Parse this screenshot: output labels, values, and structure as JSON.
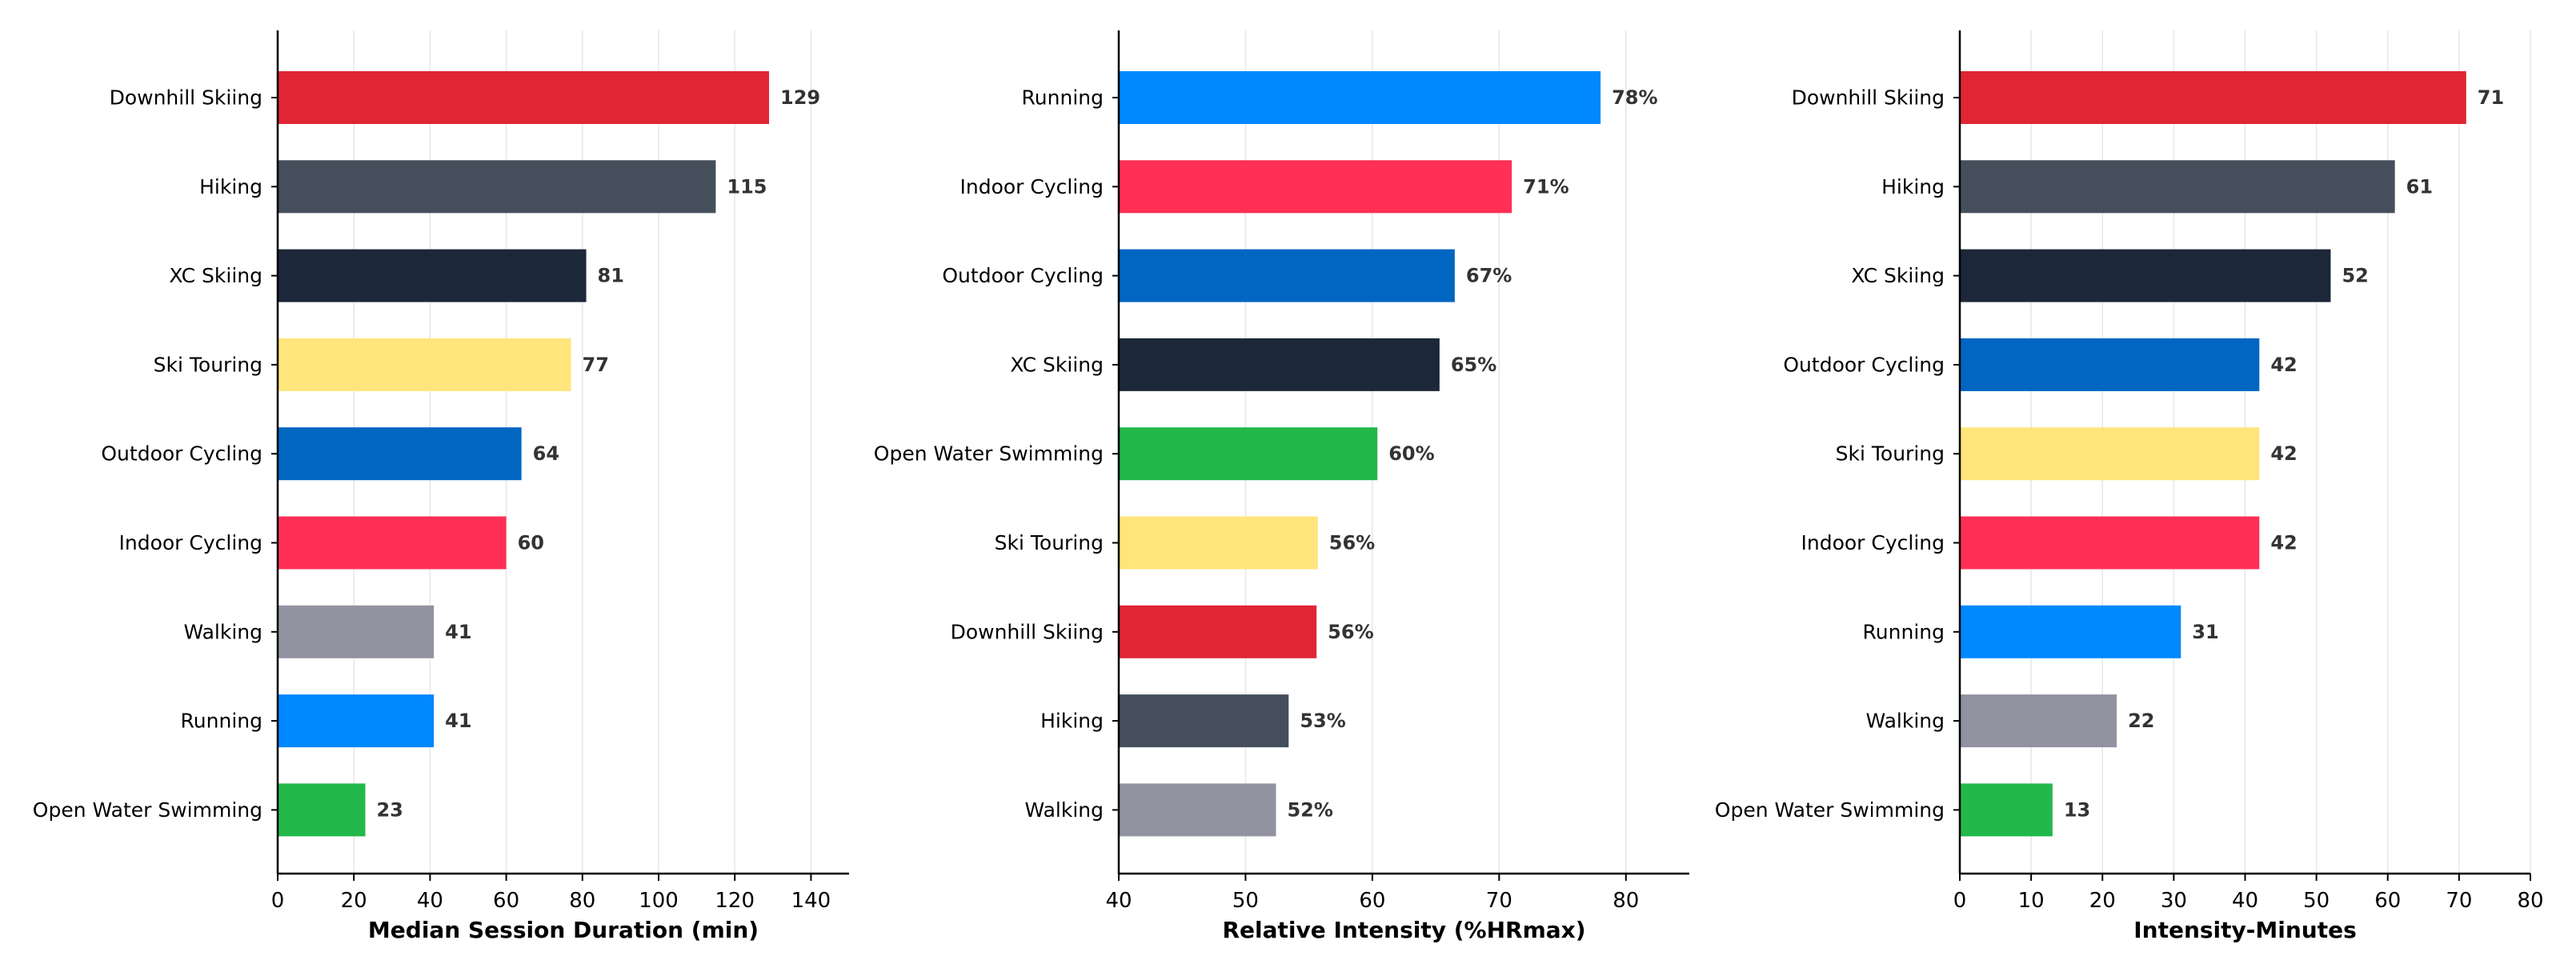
{
  "colors": {
    "Downhill Skiing": "#e02535",
    "Hiking": "#454f5c",
    "XC Skiing": "#1c2739",
    "Ski Touring": "#ffe57c",
    "Outdoor Cycling": "#0066c2",
    "Indoor Cycling": "#ff2f55",
    "Walking": "#9193a1",
    "Running": "#0088ff",
    "Open Water Swimming": "#22b84b"
  },
  "chart_data": [
    {
      "type": "bar",
      "orientation": "horizontal",
      "xlabel": "Median Session Duration (min)",
      "xlim": [
        0,
        150
      ],
      "xticks": [
        0,
        20,
        40,
        60,
        80,
        100,
        120,
        140
      ],
      "value_suffix": "",
      "grid": "vertical",
      "categories": [
        "Downhill Skiing",
        "Hiking",
        "XC Skiing",
        "Ski Touring",
        "Outdoor Cycling",
        "Indoor Cycling",
        "Walking",
        "Running",
        "Open Water Swimming"
      ],
      "values": [
        129,
        115,
        81,
        77,
        64,
        60,
        41,
        41,
        23
      ],
      "value_labels": [
        "129",
        "115",
        "81",
        "77",
        "64",
        "60",
        "41",
        "41",
        "23"
      ]
    },
    {
      "type": "bar",
      "orientation": "horizontal",
      "xlabel": "Relative Intensity (%HRmax)",
      "xlim": [
        40,
        85
      ],
      "xticks": [
        40,
        50,
        60,
        70,
        80
      ],
      "value_suffix": "%",
      "grid": "vertical",
      "categories": [
        "Running",
        "Indoor Cycling",
        "Outdoor Cycling",
        "XC Skiing",
        "Open Water Swimming",
        "Ski Touring",
        "Downhill Skiing",
        "Hiking",
        "Walking"
      ],
      "values": [
        78,
        71,
        66.5,
        65.3,
        60.4,
        55.7,
        55.6,
        53.4,
        52.4
      ],
      "value_labels": [
        "78%",
        "71%",
        "67%",
        "65%",
        "60%",
        "56%",
        "56%",
        "53%",
        "52%"
      ]
    },
    {
      "type": "bar",
      "orientation": "horizontal",
      "xlabel": "Intensity-Minutes",
      "xlim": [
        0,
        80
      ],
      "xticks": [
        0,
        10,
        20,
        30,
        40,
        50,
        60,
        70,
        80
      ],
      "value_suffix": "",
      "grid": "vertical",
      "categories": [
        "Downhill Skiing",
        "Hiking",
        "XC Skiing",
        "Outdoor Cycling",
        "Ski Touring",
        "Indoor Cycling",
        "Running",
        "Walking",
        "Open Water Swimming"
      ],
      "values": [
        71,
        61,
        52,
        42,
        42,
        42,
        31,
        22,
        13
      ],
      "value_labels": [
        "71",
        "61",
        "52",
        "42",
        "42",
        "42",
        "31",
        "22",
        "13"
      ]
    }
  ]
}
